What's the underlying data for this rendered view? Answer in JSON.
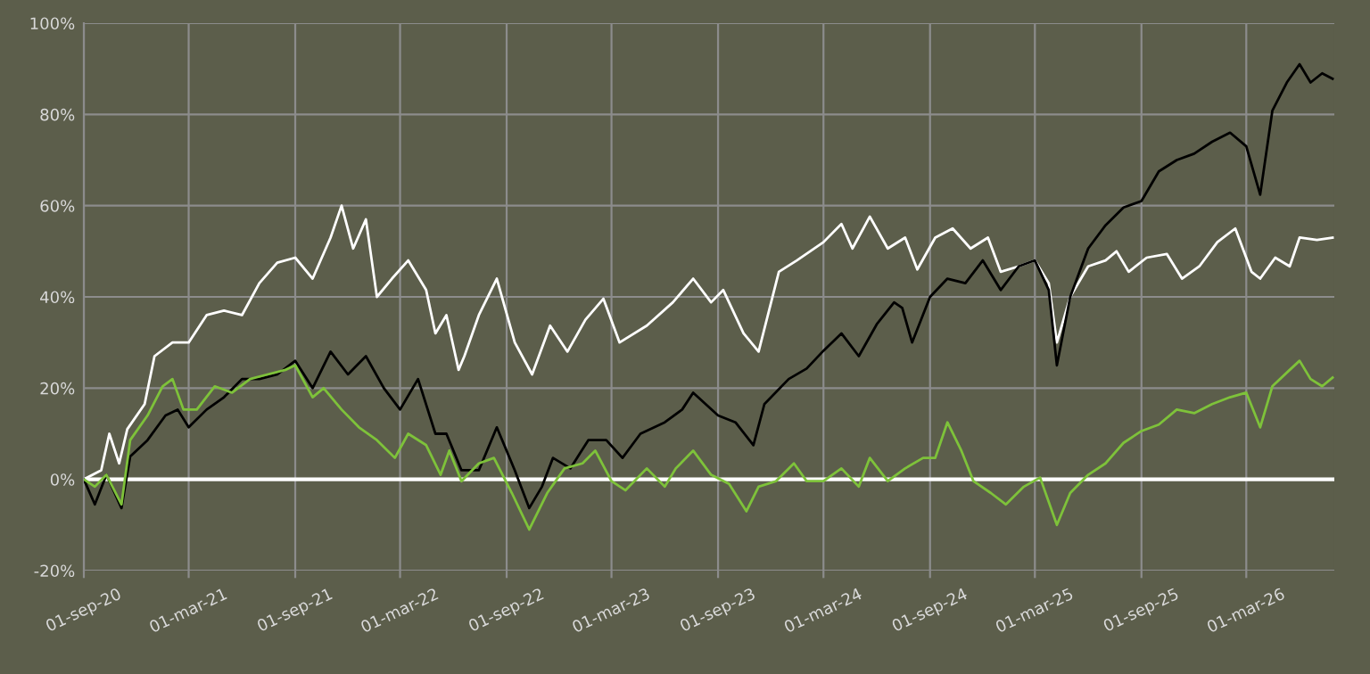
{
  "chart_data": {
    "type": "line",
    "xlim": [
      "2020-09-01",
      "2026-07-31"
    ],
    "xticks": [
      {
        "value": "2020-09-01",
        "label": "01-sep-20"
      },
      {
        "value": "2021-03-01",
        "label": "01-mar-21"
      },
      {
        "value": "2021-09-01",
        "label": "01-sep-21"
      },
      {
        "value": "2022-03-01",
        "label": "01-mar-22"
      },
      {
        "value": "2022-09-01",
        "label": "01-sep-22"
      },
      {
        "value": "2023-03-01",
        "label": "01-mar-23"
      },
      {
        "value": "2023-09-01",
        "label": "01-sep-23"
      },
      {
        "value": "2024-03-01",
        "label": "01-mar-24"
      },
      {
        "value": "2024-09-01",
        "label": "01-sep-24"
      },
      {
        "value": "2025-03-01",
        "label": "01-mar-25"
      },
      {
        "value": "2025-09-01",
        "label": "01-sep-25"
      },
      {
        "value": "2026-03-01",
        "label": "01-mar-26"
      }
    ],
    "ylim": [
      -20,
      100
    ],
    "yticks": [
      {
        "value": -20,
        "label": "-20%"
      },
      {
        "value": 0,
        "label": "0%"
      },
      {
        "value": 20,
        "label": "20%"
      },
      {
        "value": 40,
        "label": "40%"
      },
      {
        "value": 60,
        "label": "60%"
      },
      {
        "value": 80,
        "label": "80%"
      },
      {
        "value": 100,
        "label": "100%"
      }
    ],
    "grid": true,
    "legend": false,
    "ref_lines": [
      {
        "axis": "y",
        "value": 0,
        "color": "#ffffff",
        "line_style": "solid"
      }
    ],
    "series": [
      {
        "color": "#ffffff",
        "x": [
          "2020-09-01",
          "2020-10-01",
          "2020-10-15",
          "2020-11-01",
          "2020-11-15",
          "2020-12-15",
          "2021-01-01",
          "2021-02-01",
          "2021-03-01",
          "2021-04-01",
          "2021-05-01",
          "2021-06-01",
          "2021-07-01",
          "2021-08-01",
          "2021-09-01",
          "2021-10-01",
          "2021-11-01",
          "2021-11-20",
          "2021-12-10",
          "2022-01-01",
          "2022-01-20",
          "2022-02-15",
          "2022-03-15",
          "2022-04-15",
          "2022-05-01",
          "2022-05-20",
          "2022-06-10",
          "2022-06-20",
          "2022-07-15",
          "2022-08-15",
          "2022-09-15",
          "2022-10-15",
          "2022-11-15",
          "2022-12-15",
          "2023-01-15",
          "2023-02-15",
          "2023-03-15",
          "2023-05-01",
          "2023-06-15",
          "2023-07-20",
          "2023-08-20",
          "2023-09-10",
          "2023-10-15",
          "2023-11-10",
          "2023-12-15",
          "2024-01-15",
          "2024-03-01",
          "2024-04-01",
          "2024-04-20",
          "2024-05-20",
          "2024-06-20",
          "2024-07-20",
          "2024-08-10",
          "2024-09-10",
          "2024-10-10",
          "2024-11-10",
          "2024-12-10",
          "2025-01-01",
          "2025-02-01",
          "2025-03-01",
          "2025-03-25",
          "2025-04-08",
          "2025-05-01",
          "2025-06-01",
          "2025-07-01",
          "2025-07-20",
          "2025-08-10",
          "2025-09-10",
          "2025-10-15",
          "2025-11-10",
          "2025-12-10",
          "2026-01-10",
          "2026-02-10",
          "2026-03-10",
          "2026-03-25",
          "2026-04-20",
          "2026-05-15",
          "2026-06-01",
          "2026-07-01",
          "2026-07-28"
        ],
        "values": [
          0,
          2,
          10,
          3.5,
          11,
          16.5,
          27,
          30,
          30,
          36,
          37,
          36,
          43,
          47.5,
          48.6,
          44,
          53,
          60,
          50.6,
          57,
          40,
          44,
          48,
          41.5,
          32,
          36,
          24,
          27,
          36,
          44,
          30,
          23,
          33.7,
          28,
          35,
          39.6,
          30,
          33.7,
          38.8,
          44,
          38.8,
          41.5,
          32,
          28,
          45.5,
          48,
          52,
          56,
          50.6,
          57.6,
          50.6,
          53,
          46,
          53,
          55,
          50.6,
          53,
          45.5,
          46.7,
          48,
          43,
          30,
          40,
          46.7,
          48,
          50,
          45.5,
          48.6,
          49.4,
          44,
          46.7,
          52,
          55,
          45.5,
          44,
          48.6,
          46.7,
          53,
          52.5,
          53
        ]
      },
      {
        "color": "#000000",
        "x": [
          "2020-09-01",
          "2020-09-20",
          "2020-10-10",
          "2020-11-05",
          "2020-11-20",
          "2020-12-20",
          "2021-01-20",
          "2021-02-10",
          "2021-03-01",
          "2021-04-01",
          "2021-05-01",
          "2021-06-01",
          "2021-07-01",
          "2021-08-01",
          "2021-09-01",
          "2021-10-01",
          "2021-11-01",
          "2021-12-01",
          "2022-01-01",
          "2022-02-01",
          "2022-03-01",
          "2022-04-01",
          "2022-05-01",
          "2022-05-20",
          "2022-06-15",
          "2022-07-15",
          "2022-08-15",
          "2022-09-15",
          "2022-10-10",
          "2022-11-01",
          "2022-11-20",
          "2022-12-20",
          "2023-01-20",
          "2023-02-20",
          "2023-03-20",
          "2023-04-20",
          "2023-06-01",
          "2023-07-01",
          "2023-07-20",
          "2023-09-01",
          "2023-10-01",
          "2023-11-01",
          "2023-11-20",
          "2024-01-01",
          "2024-02-01",
          "2024-03-01",
          "2024-04-01",
          "2024-05-01",
          "2024-06-01",
          "2024-07-01",
          "2024-07-15",
          "2024-08-01",
          "2024-09-01",
          "2024-10-01",
          "2024-11-01",
          "2024-12-01",
          "2025-01-01",
          "2025-02-01",
          "2025-03-01",
          "2025-03-25",
          "2025-04-08",
          "2025-05-01",
          "2025-06-01",
          "2025-07-01",
          "2025-08-01",
          "2025-09-01",
          "2025-10-01",
          "2025-11-01",
          "2025-12-01",
          "2026-01-01",
          "2026-02-01",
          "2026-03-01",
          "2026-03-25",
          "2026-04-15",
          "2026-05-10",
          "2026-06-01",
          "2026-06-20",
          "2026-07-10",
          "2026-07-28"
        ],
        "values": [
          0,
          -5.5,
          1,
          -6.3,
          5,
          8.6,
          14,
          15.3,
          11.4,
          15.3,
          18,
          22,
          22,
          23,
          26,
          20,
          28,
          23,
          27,
          20,
          15.3,
          22,
          10,
          10,
          2,
          2,
          11.4,
          2,
          -6.3,
          -1.6,
          4.7,
          2.4,
          8.6,
          8.6,
          4.7,
          10,
          12.5,
          15.3,
          19,
          14,
          12.5,
          7.5,
          16.5,
          22,
          24.3,
          28.2,
          32,
          27,
          34,
          38.8,
          37.6,
          30,
          40,
          44,
          43,
          48,
          41.5,
          46.7,
          48,
          41.5,
          25,
          40,
          50.6,
          55.7,
          59.6,
          61,
          67.5,
          70,
          71.4,
          74,
          76,
          73,
          62.4,
          80.8,
          87,
          91,
          87,
          89,
          87.8
        ]
      },
      {
        "color": "#7ec23a",
        "x": [
          "2020-09-01",
          "2020-09-20",
          "2020-10-10",
          "2020-11-05",
          "2020-11-20",
          "2020-12-20",
          "2021-01-15",
          "2021-02-01",
          "2021-02-20",
          "2021-03-15",
          "2021-04-15",
          "2021-05-15",
          "2021-06-15",
          "2021-07-15",
          "2021-08-15",
          "2021-09-01",
          "2021-10-01",
          "2021-10-20",
          "2021-11-20",
          "2021-12-20",
          "2022-01-20",
          "2022-02-20",
          "2022-03-15",
          "2022-04-15",
          "2022-05-10",
          "2022-05-25",
          "2022-06-15",
          "2022-07-15",
          "2022-08-10",
          "2022-09-10",
          "2022-10-10",
          "2022-11-10",
          "2022-12-10",
          "2023-01-10",
          "2023-02-01",
          "2023-03-01",
          "2023-03-25",
          "2023-05-01",
          "2023-06-01",
          "2023-06-20",
          "2023-07-20",
          "2023-08-20",
          "2023-09-20",
          "2023-10-20",
          "2023-11-10",
          "2023-12-10",
          "2024-01-10",
          "2024-02-01",
          "2024-03-01",
          "2024-04-01",
          "2024-05-01",
          "2024-05-20",
          "2024-06-20",
          "2024-07-20",
          "2024-08-20",
          "2024-09-10",
          "2024-10-01",
          "2024-10-25",
          "2024-11-15",
          "2024-12-15",
          "2025-01-10",
          "2025-02-10",
          "2025-03-10",
          "2025-04-08",
          "2025-05-01",
          "2025-06-01",
          "2025-07-01",
          "2025-08-01",
          "2025-09-01",
          "2025-10-01",
          "2025-11-01",
          "2025-12-01",
          "2026-01-01",
          "2026-02-01",
          "2026-03-01",
          "2026-03-25",
          "2026-04-15",
          "2026-05-15",
          "2026-06-01",
          "2026-06-20",
          "2026-07-10",
          "2026-07-28"
        ],
        "values": [
          0,
          -1.6,
          1,
          -5.5,
          8.6,
          14,
          20.4,
          22,
          15.3,
          15.3,
          20.4,
          19,
          22,
          23,
          24,
          25,
          18,
          20,
          15.3,
          11.4,
          8.6,
          4.7,
          10,
          7.5,
          1,
          6.3,
          -0.4,
          3.5,
          4.7,
          -3,
          -11,
          -3,
          2.4,
          3.5,
          6.3,
          -0.4,
          -2.4,
          2.4,
          -1.6,
          2.4,
          6.3,
          1,
          -1,
          -7,
          -1.6,
          -0.4,
          3.5,
          -0.4,
          -0.4,
          2.4,
          -1.6,
          4.7,
          -0.4,
          2.4,
          4.7,
          4.7,
          12.5,
          6.3,
          -0.4,
          -3,
          -5.5,
          -1.6,
          0.4,
          -10,
          -3,
          1,
          3.5,
          8,
          10.6,
          12,
          15.3,
          14.5,
          16.5,
          18,
          19,
          11.4,
          20.4,
          24,
          26,
          22,
          20.4,
          22.3
        ]
      }
    ]
  }
}
